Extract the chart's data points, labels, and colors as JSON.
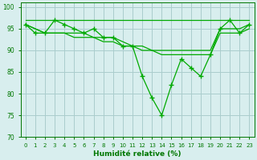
{
  "title": "",
  "xlabel": "Humidité relative (%)",
  "ylabel": "",
  "background_color": "#d8eeee",
  "grid_color": "#aacccc",
  "line_color": "#00aa00",
  "marker_color": "#00aa00",
  "ylim": [
    70,
    101
  ],
  "xlim": [
    -0.5,
    23.5
  ],
  "yticks": [
    70,
    75,
    80,
    85,
    90,
    95,
    100
  ],
  "xticks": [
    0,
    1,
    2,
    3,
    4,
    5,
    6,
    7,
    8,
    9,
    10,
    11,
    12,
    13,
    14,
    15,
    16,
    17,
    18,
    19,
    20,
    21,
    22,
    23
  ],
  "series_with_markers": [
    96,
    94,
    94,
    97,
    96,
    95,
    94,
    95,
    93,
    93,
    91,
    91,
    84,
    79,
    75,
    82,
    88,
    86,
    84,
    89,
    95,
    97,
    94,
    96
  ],
  "series_flat1": [
    97,
    97,
    97,
    97,
    97,
    97,
    97,
    97,
    97,
    97,
    97,
    97,
    97,
    97,
    97,
    97,
    97,
    97,
    97,
    97,
    97,
    97,
    97,
    97
  ],
  "series_trend1": [
    96,
    95,
    94,
    94,
    94,
    94,
    94,
    93,
    93,
    93,
    92,
    91,
    91,
    90,
    90,
    90,
    90,
    90,
    90,
    90,
    95,
    95,
    95,
    96
  ],
  "series_trend2": [
    96,
    95,
    94,
    94,
    94,
    93,
    93,
    93,
    92,
    92,
    91,
    91,
    90,
    90,
    89,
    89,
    89,
    89,
    89,
    89,
    94,
    94,
    94,
    95
  ]
}
